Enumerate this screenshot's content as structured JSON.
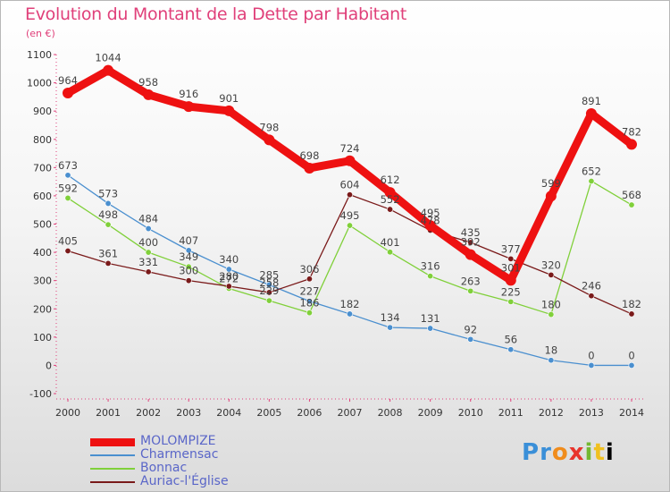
{
  "header": {
    "title": "Evolution du Montant de la Dette par Habitant",
    "unit": "(en €)"
  },
  "logo": {
    "text": "Proxiti"
  },
  "chart_data": {
    "type": "line",
    "title": "Evolution du Montant de la Dette par Habitant",
    "ylabel": "(en €)",
    "xlabel": "",
    "ylim": [
      -100,
      1100
    ],
    "yticks": [
      -100,
      0,
      100,
      200,
      300,
      400,
      500,
      600,
      700,
      800,
      900,
      1000,
      1100
    ],
    "grid": false,
    "legend_position": "bottom-left",
    "categories": [
      "2000",
      "2001",
      "2002",
      "2003",
      "2004",
      "2005",
      "2006",
      "2007",
      "2008",
      "2009",
      "2010",
      "2011",
      "2012",
      "2013",
      "2014"
    ],
    "series": [
      {
        "name": "MOLOMPIZE",
        "color": "#ee1111",
        "width": 9,
        "values": [
          964,
          1044,
          958,
          916,
          901,
          798,
          698,
          724,
          612,
          495,
          392,
          301,
          599,
          891,
          782
        ]
      },
      {
        "name": "Charmensac",
        "color": "#4a8fcf",
        "width": 1.3,
        "values": [
          673,
          573,
          484,
          407,
          340,
          285,
          227,
          182,
          134,
          131,
          92,
          56,
          18,
          0,
          0
        ]
      },
      {
        "name": "Bonnac",
        "color": "#80d03a",
        "width": 1.3,
        "values": [
          592,
          498,
          400,
          349,
          272,
          229,
          186,
          495,
          401,
          316,
          263,
          225,
          180,
          652,
          568
        ]
      },
      {
        "name": "Auriac-l'Église",
        "color": "#7a1a1a",
        "width": 1.3,
        "values": [
          405,
          361,
          331,
          300,
          280,
          258,
          306,
          604,
          552,
          478,
          435,
          377,
          320,
          246,
          182
        ]
      }
    ]
  }
}
